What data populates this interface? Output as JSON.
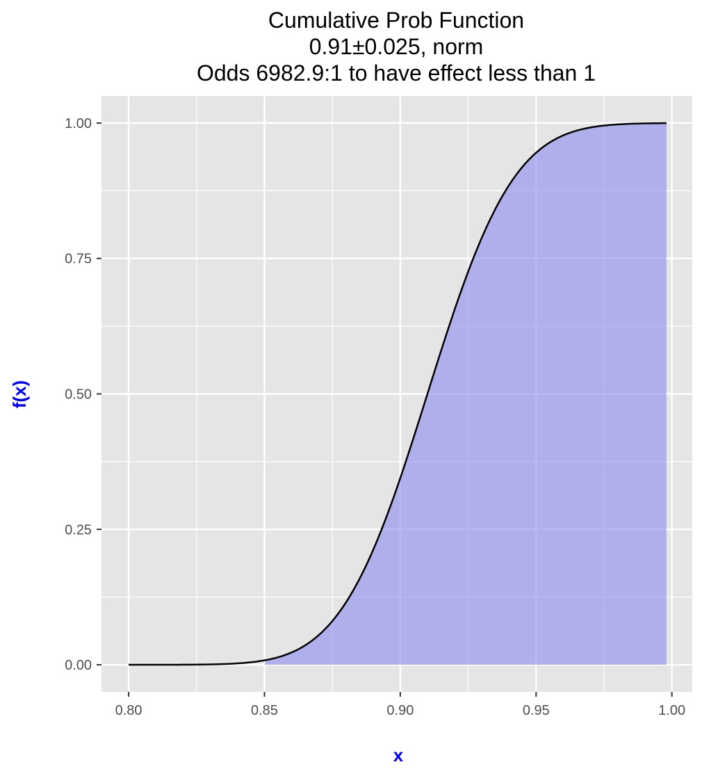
{
  "chart_data": {
    "type": "area",
    "title_lines": [
      "Cumulative Prob Function",
      "0.91±0.025, norm",
      "Odds 6982.9:1 to have effect less than 1"
    ],
    "xlabel": "x",
    "ylabel": "f(x)",
    "distribution": {
      "family": "norm",
      "mean": 0.91,
      "sd": 0.025
    },
    "x_range": [
      0.8,
      0.998
    ],
    "xlim": [
      0.79,
      1.0075
    ],
    "ylim": [
      -0.05,
      1.05
    ],
    "shade_from_x": 0.85,
    "x_ticks": [
      0.8,
      0.85,
      0.9,
      0.95,
      1.0
    ],
    "x_tick_labels": [
      "0.80",
      "0.85",
      "0.90",
      "0.95",
      "1.00"
    ],
    "y_ticks": [
      0,
      0.25,
      0.5,
      0.75,
      1.0
    ],
    "y_tick_labels": [
      "0.00",
      "0.25",
      "0.50",
      "0.75",
      "1.00"
    ],
    "grid": true,
    "colors": {
      "panel": "#e5e5e5",
      "grid": "#ffffff",
      "fill": "#8a8af0",
      "fill_opacity": 0.6,
      "line": "#000000",
      "axis_label": "#0000ff"
    }
  }
}
